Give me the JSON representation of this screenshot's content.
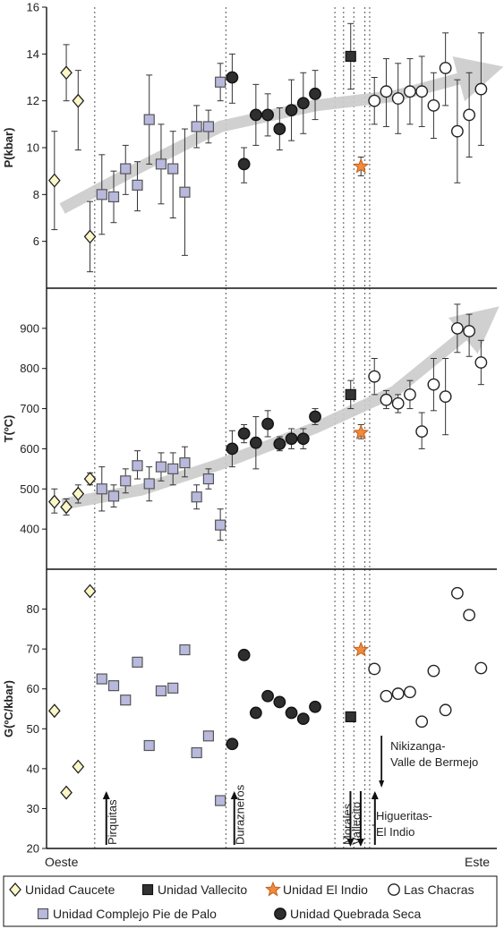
{
  "chart_data": {
    "type": "scatter",
    "x_labels": {
      "left": "Oeste",
      "right": "Este"
    },
    "panels": [
      {
        "id": "P",
        "ylabel": "P(kbar)",
        "ylim": [
          4,
          16
        ],
        "yticks": [
          6,
          8,
          10,
          12,
          14,
          16
        ],
        "points": [
          {
            "x": 1,
            "y": 8.6,
            "lo": 6.5,
            "hi": 10.7,
            "unit": "Caucete"
          },
          {
            "x": 2.5,
            "y": 13.2,
            "lo": 12.0,
            "hi": 14.4,
            "unit": "Caucete"
          },
          {
            "x": 4,
            "y": 12.0,
            "lo": 9.9,
            "hi": 13.3,
            "unit": "Caucete"
          },
          {
            "x": 5.5,
            "y": 6.2,
            "lo": 4.7,
            "hi": 7.7,
            "unit": "Caucete"
          },
          {
            "x": 7,
            "y": 8.0,
            "lo": 6.3,
            "hi": 9.7,
            "unit": "Pie de Palo"
          },
          {
            "x": 8.5,
            "y": 7.9,
            "lo": 6.8,
            "hi": 9.0,
            "unit": "Pie de Palo"
          },
          {
            "x": 10,
            "y": 9.1,
            "lo": 8.0,
            "hi": 10.1,
            "unit": "Pie de Palo"
          },
          {
            "x": 11.5,
            "y": 8.4,
            "lo": 7.3,
            "hi": 9.4,
            "unit": "Pie de Palo"
          },
          {
            "x": 13,
            "y": 11.2,
            "lo": 9.3,
            "hi": 13.1,
            "unit": "Pie de Palo"
          },
          {
            "x": 14.5,
            "y": 9.3,
            "lo": 7.6,
            "hi": 11.0,
            "unit": "Pie de Palo"
          },
          {
            "x": 16,
            "y": 9.1,
            "lo": 7.0,
            "hi": 10.7,
            "unit": "Pie de Palo"
          },
          {
            "x": 17.5,
            "y": 8.1,
            "lo": 5.4,
            "hi": 10.8,
            "unit": "Pie de Palo"
          },
          {
            "x": 19,
            "y": 10.9,
            "lo": 10.0,
            "hi": 11.8,
            "unit": "Pie de Palo"
          },
          {
            "x": 20.5,
            "y": 10.9,
            "lo": 10.2,
            "hi": 11.6,
            "unit": "Pie de Palo"
          },
          {
            "x": 22,
            "y": 12.8,
            "lo": 12.0,
            "hi": 13.6,
            "unit": "Pie de Palo"
          },
          {
            "x": 23.5,
            "y": 13.0,
            "lo": 11.9,
            "hi": 14.0,
            "unit": "Quebrada Seca"
          },
          {
            "x": 25,
            "y": 9.3,
            "lo": 8.5,
            "hi": 10.0,
            "unit": "Quebrada Seca"
          },
          {
            "x": 26.5,
            "y": 11.4,
            "lo": 10.1,
            "hi": 12.7,
            "unit": "Quebrada Seca"
          },
          {
            "x": 28,
            "y": 11.4,
            "lo": 10.5,
            "hi": 12.3,
            "unit": "Quebrada Seca"
          },
          {
            "x": 29.5,
            "y": 10.8,
            "lo": 9.9,
            "hi": 11.7,
            "unit": "Quebrada Seca"
          },
          {
            "x": 31,
            "y": 11.6,
            "lo": 10.3,
            "hi": 12.9,
            "unit": "Quebrada Seca"
          },
          {
            "x": 32.5,
            "y": 11.9,
            "lo": 10.6,
            "hi": 13.2,
            "unit": "Quebrada Seca"
          },
          {
            "x": 34,
            "y": 12.3,
            "lo": 11.2,
            "hi": 13.3,
            "unit": "Quebrada Seca"
          },
          {
            "x": 38.5,
            "y": 13.9,
            "lo": 12.5,
            "hi": 15.3,
            "unit": "Vallecito"
          },
          {
            "x": 39.8,
            "y": 9.2,
            "lo": 8.8,
            "hi": 9.6,
            "unit": "El Indio"
          },
          {
            "x": 41.5,
            "y": 12.0,
            "lo": 11.0,
            "hi": 13.0,
            "unit": "Las Chacras"
          },
          {
            "x": 43,
            "y": 12.4,
            "lo": 10.9,
            "hi": 13.8,
            "unit": "Las Chacras"
          },
          {
            "x": 44.5,
            "y": 12.1,
            "lo": 10.6,
            "hi": 13.6,
            "unit": "Las Chacras"
          },
          {
            "x": 46,
            "y": 12.4,
            "lo": 11.0,
            "hi": 13.8,
            "unit": "Las Chacras"
          },
          {
            "x": 47.5,
            "y": 12.4,
            "lo": 10.9,
            "hi": 13.9,
            "unit": "Las Chacras"
          },
          {
            "x": 49,
            "y": 11.8,
            "lo": 10.4,
            "hi": 13.2,
            "unit": "Las Chacras"
          },
          {
            "x": 50.5,
            "y": 13.4,
            "lo": 11.8,
            "hi": 14.9,
            "unit": "Las Chacras"
          },
          {
            "x": 52,
            "y": 10.7,
            "lo": 8.5,
            "hi": 12.9,
            "unit": "Las Chacras"
          },
          {
            "x": 53.5,
            "y": 11.4,
            "lo": 9.6,
            "hi": 13.2,
            "unit": "Las Chacras"
          },
          {
            "x": 55,
            "y": 12.5,
            "lo": 10.1,
            "hi": 14.9,
            "unit": "Las Chacras"
          }
        ],
        "trend": [
          [
            2,
            7.4
          ],
          [
            12,
            9.2
          ],
          [
            22,
            10.9
          ],
          [
            34,
            11.8
          ],
          [
            44,
            12.2
          ],
          [
            55,
            13.2
          ]
        ]
      },
      {
        "id": "T",
        "ylabel": "T(ºC)",
        "ylim": [
          300,
          1000
        ],
        "yticks": [
          400,
          500,
          600,
          700,
          800,
          900
        ],
        "points": [
          {
            "x": 1,
            "y": 468,
            "lo": 440,
            "hi": 500,
            "unit": "Caucete"
          },
          {
            "x": 2.5,
            "y": 455,
            "lo": 435,
            "hi": 475,
            "unit": "Caucete"
          },
          {
            "x": 4,
            "y": 488,
            "lo": 465,
            "hi": 510,
            "unit": "Caucete"
          },
          {
            "x": 5.5,
            "y": 525,
            "lo": 510,
            "hi": 540,
            "unit": "Caucete"
          },
          {
            "x": 7,
            "y": 500,
            "lo": 445,
            "hi": 555,
            "unit": "Pie de Palo"
          },
          {
            "x": 8.5,
            "y": 482,
            "lo": 455,
            "hi": 510,
            "unit": "Pie de Palo"
          },
          {
            "x": 10,
            "y": 520,
            "lo": 490,
            "hi": 550,
            "unit": "Pie de Palo"
          },
          {
            "x": 11.5,
            "y": 558,
            "lo": 525,
            "hi": 595,
            "unit": "Pie de Palo"
          },
          {
            "x": 13,
            "y": 513,
            "lo": 470,
            "hi": 555,
            "unit": "Pie de Palo"
          },
          {
            "x": 14.5,
            "y": 555,
            "lo": 520,
            "hi": 590,
            "unit": "Pie de Palo"
          },
          {
            "x": 16,
            "y": 550,
            "lo": 510,
            "hi": 590,
            "unit": "Pie de Palo"
          },
          {
            "x": 17.5,
            "y": 565,
            "lo": 530,
            "hi": 605,
            "unit": "Pie de Palo"
          },
          {
            "x": 19,
            "y": 480,
            "lo": 450,
            "hi": 510,
            "unit": "Pie de Palo"
          },
          {
            "x": 20.5,
            "y": 525,
            "lo": 500,
            "hi": 550,
            "unit": "Pie de Palo"
          },
          {
            "x": 22,
            "y": 410,
            "lo": 372,
            "hi": 450,
            "unit": "Pie de Palo"
          },
          {
            "x": 23.5,
            "y": 600,
            "lo": 555,
            "hi": 645,
            "unit": "Quebrada Seca"
          },
          {
            "x": 25,
            "y": 638,
            "lo": 615,
            "hi": 660,
            "unit": "Quebrada Seca"
          },
          {
            "x": 26.5,
            "y": 615,
            "lo": 550,
            "hi": 680,
            "unit": "Quebrada Seca"
          },
          {
            "x": 28,
            "y": 662,
            "lo": 630,
            "hi": 695,
            "unit": "Quebrada Seca"
          },
          {
            "x": 29.5,
            "y": 612,
            "lo": 595,
            "hi": 630,
            "unit": "Quebrada Seca"
          },
          {
            "x": 31,
            "y": 625,
            "lo": 600,
            "hi": 650,
            "unit": "Quebrada Seca"
          },
          {
            "x": 32.5,
            "y": 625,
            "lo": 600,
            "hi": 650,
            "unit": "Quebrada Seca"
          },
          {
            "x": 34,
            "y": 680,
            "lo": 660,
            "hi": 700,
            "unit": "Quebrada Seca"
          },
          {
            "x": 38.5,
            "y": 735,
            "lo": 700,
            "hi": 770,
            "unit": "Vallecito"
          },
          {
            "x": 39.8,
            "y": 640,
            "lo": 625,
            "hi": 660,
            "unit": "El Indio"
          },
          {
            "x": 41.5,
            "y": 780,
            "lo": 735,
            "hi": 825,
            "unit": "Las Chacras"
          },
          {
            "x": 43,
            "y": 722,
            "lo": 700,
            "hi": 745,
            "unit": "Las Chacras"
          },
          {
            "x": 44.5,
            "y": 713,
            "lo": 690,
            "hi": 735,
            "unit": "Las Chacras"
          },
          {
            "x": 46,
            "y": 735,
            "lo": 700,
            "hi": 770,
            "unit": "Las Chacras"
          },
          {
            "x": 47.5,
            "y": 643,
            "lo": 600,
            "hi": 690,
            "unit": "Las Chacras"
          },
          {
            "x": 49,
            "y": 760,
            "lo": 695,
            "hi": 825,
            "unit": "Las Chacras"
          },
          {
            "x": 50.5,
            "y": 730,
            "lo": 635,
            "hi": 825,
            "unit": "Las Chacras"
          },
          {
            "x": 52,
            "y": 900,
            "lo": 840,
            "hi": 960,
            "unit": "Las Chacras"
          },
          {
            "x": 53.5,
            "y": 893,
            "lo": 830,
            "hi": 935,
            "unit": "Las Chacras"
          },
          {
            "x": 55,
            "y": 815,
            "lo": 760,
            "hi": 870,
            "unit": "Las Chacras"
          }
        ],
        "trend": [
          [
            2,
            462
          ],
          [
            12,
            498
          ],
          [
            22,
            562
          ],
          [
            34,
            652
          ],
          [
            44,
            742
          ],
          [
            55,
            918
          ]
        ]
      },
      {
        "id": "G",
        "ylabel": "G(ºC/kbar)",
        "ylim": [
          20,
          90
        ],
        "yticks": [
          20,
          30,
          40,
          50,
          60,
          70,
          80
        ],
        "points": [
          {
            "x": 1,
            "y": 54.5,
            "unit": "Caucete"
          },
          {
            "x": 2.5,
            "y": 34.0,
            "unit": "Caucete"
          },
          {
            "x": 4,
            "y": 40.5,
            "unit": "Caucete"
          },
          {
            "x": 5.5,
            "y": 84.5,
            "unit": "Caucete"
          },
          {
            "x": 7,
            "y": 62.5,
            "unit": "Pie de Palo"
          },
          {
            "x": 8.5,
            "y": 60.8,
            "unit": "Pie de Palo"
          },
          {
            "x": 10,
            "y": 57.2,
            "unit": "Pie de Palo"
          },
          {
            "x": 11.5,
            "y": 66.7,
            "unit": "Pie de Palo"
          },
          {
            "x": 13,
            "y": 45.8,
            "unit": "Pie de Palo"
          },
          {
            "x": 14.5,
            "y": 59.5,
            "unit": "Pie de Palo"
          },
          {
            "x": 16,
            "y": 60.2,
            "unit": "Pie de Palo"
          },
          {
            "x": 17.5,
            "y": 69.8,
            "unit": "Pie de Palo"
          },
          {
            "x": 19,
            "y": 44.0,
            "unit": "Pie de Palo"
          },
          {
            "x": 20.5,
            "y": 48.2,
            "unit": "Pie de Palo"
          },
          {
            "x": 22,
            "y": 32.0,
            "unit": "Pie de Palo"
          },
          {
            "x": 23.5,
            "y": 46.2,
            "unit": "Quebrada Seca"
          },
          {
            "x": 25,
            "y": 68.5,
            "unit": "Quebrada Seca"
          },
          {
            "x": 26.5,
            "y": 54.0,
            "unit": "Quebrada Seca"
          },
          {
            "x": 28,
            "y": 58.2,
            "unit": "Quebrada Seca"
          },
          {
            "x": 29.5,
            "y": 56.7,
            "unit": "Quebrada Seca"
          },
          {
            "x": 31,
            "y": 54.0,
            "unit": "Quebrada Seca"
          },
          {
            "x": 32.5,
            "y": 52.5,
            "unit": "Quebrada Seca"
          },
          {
            "x": 34,
            "y": 55.5,
            "unit": "Quebrada Seca"
          },
          {
            "x": 38.5,
            "y": 53.0,
            "unit": "Vallecito"
          },
          {
            "x": 39.8,
            "y": 69.8,
            "unit": "El Indio"
          },
          {
            "x": 41.5,
            "y": 65.0,
            "unit": "Las Chacras"
          },
          {
            "x": 43,
            "y": 58.2,
            "unit": "Las Chacras"
          },
          {
            "x": 44.5,
            "y": 58.8,
            "unit": "Las Chacras"
          },
          {
            "x": 46,
            "y": 59.2,
            "unit": "Las Chacras"
          },
          {
            "x": 47.5,
            "y": 51.8,
            "unit": "Las Chacras"
          },
          {
            "x": 49,
            "y": 64.5,
            "unit": "Las Chacras"
          },
          {
            "x": 50.5,
            "y": 54.7,
            "unit": "Las Chacras"
          },
          {
            "x": 52,
            "y": 84.0,
            "unit": "Las Chacras"
          },
          {
            "x": 53.5,
            "y": 78.5,
            "unit": "Las Chacras"
          },
          {
            "x": 55,
            "y": 65.2,
            "unit": "Las Chacras"
          }
        ]
      }
    ],
    "boundaries": [
      6.1,
      22.7,
      36.5,
      37.6,
      38.9,
      40.3,
      40.9
    ],
    "zones": [
      {
        "label": "Pirquitas",
        "x": 7.0,
        "arrow": "up"
      },
      {
        "label": "Durazneros",
        "x": 23.2,
        "arrow": "up"
      },
      {
        "label": "Morales",
        "x": 36.8,
        "arrow": "none"
      },
      {
        "label": "Vallecito",
        "x": 37.9,
        "arrow": "down"
      },
      {
        "label": "",
        "x": 39.2,
        "arrow": "down"
      },
      {
        "label": "",
        "x": 41.0,
        "arrow": "up"
      }
    ],
    "callouts": [
      {
        "label": "Nikizanga-",
        "label2": "Valle de Bermejo",
        "x": 42.4
      },
      {
        "label": "Higueritas-",
        "label2": "El Indio",
        "x": 41.2
      }
    ],
    "legend": [
      {
        "label": "Unidad Caucete",
        "key": "Caucete"
      },
      {
        "label": "Unidad Vallecito",
        "key": "Vallecito"
      },
      {
        "label": "Unidad El Indio",
        "key": "El Indio"
      },
      {
        "label": "Las Chacras",
        "key": "Las Chacras"
      },
      {
        "label": "Unidad Complejo Pie de Palo",
        "key": "Pie de Palo"
      },
      {
        "label": "Unidad Quebrada Seca",
        "key": "Quebrada Seca"
      }
    ],
    "styles": {
      "Caucete": {
        "shape": "diamond",
        "fill": "#fbf7c6",
        "stroke": "#222222"
      },
      "Pie de Palo": {
        "shape": "square",
        "fill": "#b9b9de",
        "stroke": "#555555"
      },
      "Quebrada Seca": {
        "shape": "circle",
        "fill": "#2e2e2e",
        "stroke": "#111111"
      },
      "Vallecito": {
        "shape": "square",
        "fill": "#333333",
        "stroke": "#111111"
      },
      "El Indio": {
        "shape": "star",
        "fill": "#f08a3c",
        "stroke": "#c0621e"
      },
      "Las Chacras": {
        "shape": "circle",
        "fill": "#ffffff",
        "stroke": "#222222"
      }
    },
    "trend_color": "#cccccc"
  }
}
